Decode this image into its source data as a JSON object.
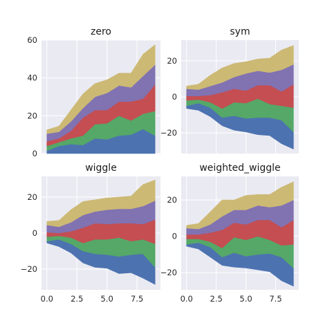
{
  "chart_data": [
    {
      "type": "area",
      "title": "zero",
      "x": [
        0,
        1,
        2,
        3,
        4,
        5,
        6,
        7,
        8,
        9
      ],
      "xlim": [
        -0.45,
        9.45
      ],
      "ylim": [
        0,
        60
      ],
      "yticks": [
        0,
        20,
        40,
        60
      ],
      "ytick_labels": [
        "0",
        "20",
        "40",
        "60"
      ],
      "xticks": [
        0,
        2.5,
        5,
        7.5
      ],
      "xtick_labels": [],
      "grid": true,
      "series": [
        {
          "color": "#4c72b0",
          "lower": [
            0,
            0,
            0,
            0,
            0,
            0,
            0,
            0,
            0,
            0
          ],
          "upper": [
            1.5,
            4,
            5,
            4.5,
            8,
            7.5,
            9.5,
            10,
            13,
            9.5
          ]
        },
        {
          "color": "#55a868",
          "lower": [
            1.5,
            4,
            5,
            4.5,
            8,
            7.5,
            9.5,
            10,
            13,
            9.5
          ],
          "upper": [
            4,
            6,
            8,
            9.5,
            15.5,
            16,
            20,
            17.5,
            21,
            22.5
          ]
        },
        {
          "color": "#c44e52",
          "lower": [
            4,
            6,
            8,
            9.5,
            15.5,
            16,
            20,
            17.5,
            21,
            22.5
          ],
          "upper": [
            6.5,
            8,
            12,
            19,
            23,
            23,
            27.5,
            27.5,
            29,
            36.5
          ]
        },
        {
          "color": "#8172b2",
          "lower": [
            6.5,
            8,
            12,
            19,
            23,
            23,
            27.5,
            27.5,
            29,
            36.5
          ],
          "upper": [
            10.5,
            11.5,
            17,
            24,
            30,
            32,
            36,
            35,
            41,
            47
          ]
        },
        {
          "color": "#ccb974",
          "lower": [
            10.5,
            11.5,
            17,
            24,
            30,
            32,
            36,
            35,
            41,
            47
          ],
          "upper": [
            12.5,
            14.5,
            23,
            31.5,
            37,
            39,
            42.5,
            42.5,
            52.5,
            57.5
          ]
        }
      ]
    },
    {
      "type": "area",
      "title": "sym",
      "x": [
        0,
        1,
        2,
        3,
        4,
        5,
        6,
        7,
        8,
        9
      ],
      "xlim": [
        -0.45,
        9.45
      ],
      "ylim": [
        -31.5,
        31.5
      ],
      "yticks": [
        -20,
        0,
        20
      ],
      "ytick_labels": [
        "−20",
        "0",
        "20"
      ],
      "xticks": [
        0,
        2.5,
        5,
        7.5
      ],
      "xtick_labels": [],
      "grid": true,
      "series": [
        {
          "color": "#4c72b0",
          "lower": [
            -6.5,
            -7.5,
            -11,
            -16,
            -18.5,
            -19.5,
            -21,
            -21.5,
            -26,
            -29
          ],
          "upper": [
            -5,
            -3.5,
            -6,
            -11.5,
            -10.5,
            -12,
            -11.5,
            -11.5,
            -13,
            -19.5
          ]
        },
        {
          "color": "#55a868",
          "lower": [
            -5,
            -3.5,
            -6,
            -11.5,
            -10.5,
            -12,
            -11.5,
            -11.5,
            -13,
            -19.5
          ],
          "upper": [
            -2,
            -1.5,
            -3,
            -6.5,
            -3,
            -3.5,
            -1,
            -4,
            -5,
            -6
          ]
        },
        {
          "color": "#c44e52",
          "lower": [
            -2,
            -1.5,
            -3,
            -6.5,
            -3,
            -3.5,
            -1,
            -4,
            -5,
            -6
          ],
          "upper": [
            0.5,
            0.5,
            1,
            2.5,
            4.5,
            3.5,
            6.5,
            6.5,
            3,
            7
          ]
        },
        {
          "color": "#8172b2",
          "lower": [
            0.5,
            0.5,
            1,
            2.5,
            4.5,
            3.5,
            6.5,
            6.5,
            3,
            7
          ],
          "upper": [
            4.5,
            4,
            6,
            8,
            11,
            13,
            14.5,
            13.5,
            15,
            18
          ]
        },
        {
          "color": "#ccb974",
          "lower": [
            4.5,
            4,
            6,
            8,
            11,
            13,
            14.5,
            13.5,
            15,
            18
          ],
          "upper": [
            6,
            7,
            12,
            16,
            18.5,
            19.5,
            21,
            21.5,
            26,
            28.5
          ]
        }
      ]
    },
    {
      "type": "area",
      "title": "wiggle",
      "x": [
        0,
        1,
        2,
        3,
        4,
        5,
        6,
        7,
        8,
        9
      ],
      "xlim": [
        -0.45,
        9.45
      ],
      "ylim": [
        -31.5,
        31.5
      ],
      "yticks": [
        -20,
        0,
        20
      ],
      "ytick_labels": [
        "−20",
        "0",
        "20"
      ],
      "xticks": [
        0,
        2.5,
        5,
        7.5
      ],
      "xtick_labels": [
        "0.0",
        "2.5",
        "5.0",
        "7.5"
      ],
      "grid": true,
      "series": [
        {
          "color": "#4c72b0",
          "lower": [
            -5.5,
            -7.5,
            -11,
            -16.5,
            -19,
            -19.5,
            -22.5,
            -22,
            -25,
            -28.5
          ],
          "upper": [
            -4.5,
            -3.5,
            -6,
            -10,
            -11.5,
            -12,
            -13,
            -12,
            -11.5,
            -19
          ]
        },
        {
          "color": "#55a868",
          "lower": [
            -4.5,
            -3.5,
            -6,
            -10,
            -11.5,
            -12,
            -13,
            -12,
            -11.5,
            -19
          ],
          "upper": [
            -2,
            -1.5,
            -2.5,
            -5.5,
            -3.5,
            -3.5,
            -2.5,
            -4.5,
            -3.5,
            -6
          ]
        },
        {
          "color": "#c44e52",
          "lower": [
            -2,
            -1.5,
            -2.5,
            -5.5,
            -3.5,
            -3.5,
            -2.5,
            -4.5,
            -3.5,
            -6
          ],
          "upper": [
            0.5,
            0,
            1,
            3,
            5.5,
            5,
            5.5,
            5.5,
            5,
            7.5
          ]
        },
        {
          "color": "#8172b2",
          "lower": [
            0.5,
            0,
            1,
            3,
            5.5,
            5,
            5.5,
            5.5,
            5,
            7.5
          ],
          "upper": [
            4.5,
            3.5,
            6,
            10,
            12,
            13,
            13.5,
            13.5,
            15,
            18
          ]
        },
        {
          "color": "#ccb974",
          "lower": [
            4.5,
            3.5,
            6,
            10,
            12,
            13,
            13.5,
            13.5,
            15,
            18
          ],
          "upper": [
            6.5,
            7,
            13,
            17.5,
            18.5,
            19.5,
            20,
            20.5,
            27,
            29.5
          ]
        }
      ]
    },
    {
      "type": "area",
      "title": "weighted_wiggle",
      "x": [
        0,
        1,
        2,
        3,
        4,
        5,
        6,
        7,
        8,
        9
      ],
      "xlim": [
        -0.45,
        9.45
      ],
      "ylim": [
        -29.5,
        33
      ],
      "yticks": [
        -20,
        0,
        20
      ],
      "ytick_labels": [
        "−20",
        "0",
        "20"
      ],
      "xticks": [
        0,
        2.5,
        5,
        7.5
      ],
      "xtick_labels": [
        "0.0",
        "2.5",
        "5.0",
        "7.5"
      ],
      "grid": true,
      "series": [
        {
          "color": "#4c72b0",
          "lower": [
            -5.5,
            -7,
            -11.5,
            -16,
            -17,
            -17.5,
            -18.5,
            -19.5,
            -24.5,
            -27.5
          ],
          "upper": [
            -4.5,
            -3.5,
            -6,
            -11.5,
            -9,
            -11,
            -10,
            -9.5,
            -11.5,
            -17.5
          ]
        },
        {
          "color": "#55a868",
          "lower": [
            -4.5,
            -3.5,
            -6,
            -11.5,
            -9,
            -11,
            -10,
            -9.5,
            -11.5,
            -17.5
          ],
          "upper": [
            -1.5,
            -1.5,
            -3,
            -6.5,
            -0.5,
            -2,
            0,
            -2,
            -5,
            -4.5
          ]
        },
        {
          "color": "#c44e52",
          "lower": [
            -1.5,
            -1.5,
            -3,
            -6.5,
            -0.5,
            -2,
            0,
            -2,
            -5,
            -4.5
          ],
          "upper": [
            1,
            1,
            2,
            3.5,
            7.5,
            6.5,
            9,
            9,
            5,
            9
          ]
        },
        {
          "color": "#8172b2",
          "lower": [
            1,
            1,
            2,
            3.5,
            7.5,
            6.5,
            9,
            9,
            5,
            9
          ],
          "upper": [
            4.5,
            4,
            6.5,
            11,
            14.5,
            14.5,
            17,
            16,
            17,
            20
          ]
        },
        {
          "color": "#ccb974",
          "lower": [
            4.5,
            4,
            6.5,
            11,
            14.5,
            14.5,
            17,
            16,
            17,
            20
          ],
          "upper": [
            6,
            7,
            13.5,
            20,
            20,
            22.5,
            23,
            23,
            27,
            30
          ]
        }
      ]
    }
  ]
}
